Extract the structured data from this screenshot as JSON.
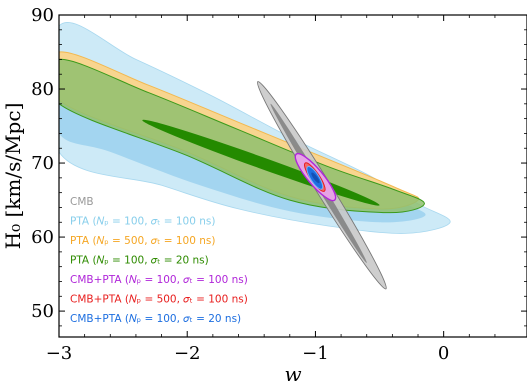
{
  "chart_data": {
    "type": "contour",
    "xlabel": "w",
    "ylabel": "H₀ [km/s/Mpc]",
    "xlim": [
      -3,
      0.65
    ],
    "ylim": [
      46.5,
      90
    ],
    "x_ticks": [
      -3,
      -2,
      -1,
      0
    ],
    "y_ticks": [
      50,
      60,
      70,
      80,
      90
    ],
    "x_tick_labels": [
      "−3",
      "−2",
      "−1",
      "0"
    ],
    "y_tick_labels": [
      "50",
      "60",
      "70",
      "80",
      "90"
    ],
    "legend_position": "lower-left",
    "series": [
      {
        "name": "CMB",
        "color": "#a0a0a0",
        "center": [
          -0.95,
          67.2
        ],
        "ellipses": [
          {
            "level": "outer",
            "points": [
              [
                -1.45,
                81
              ],
              [
                -0.45,
                53
              ]
            ],
            "width": 0.12,
            "fill": "#c9c9c9"
          },
          {
            "level": "inner",
            "points": [
              [
                -1.35,
                78
              ],
              [
                -0.6,
                56.5
              ]
            ],
            "width": 0.05,
            "fill": "#7f7f7f"
          }
        ]
      },
      {
        "name": "PTA (N_p = 100, σ_t = 100 ns)",
        "color": "#87ceeb",
        "region_points_outer": [
          [
            -3,
            88.5
          ],
          [
            -2.4,
            84
          ],
          [
            -1.8,
            79
          ],
          [
            -1.2,
            73.5
          ],
          [
            -0.6,
            68.5
          ],
          [
            -0.2,
            64.5
          ],
          [
            0.05,
            62
          ],
          [
            -0.3,
            60.5
          ],
          [
            -0.9,
            61.5
          ],
          [
            -1.6,
            63.8
          ],
          [
            -2.2,
            67
          ],
          [
            -3,
            71.5
          ]
        ],
        "region_points_inner": [
          [
            -3,
            82
          ],
          [
            -2.3,
            77.5
          ],
          [
            -1.6,
            73
          ],
          [
            -0.9,
            68.5
          ],
          [
            -0.3,
            64.5
          ],
          [
            -0.15,
            62.8
          ],
          [
            -0.5,
            62
          ],
          [
            -1.2,
            63.5
          ],
          [
            -1.9,
            67
          ],
          [
            -2.6,
            71.5
          ],
          [
            -3,
            74
          ]
        ]
      },
      {
        "name": "PTA (N_p = 500, σ_t = 100 ns)",
        "color": "#f5a623",
        "region_points_outer": [
          [
            -3,
            85
          ],
          [
            -2.3,
            80.5
          ],
          [
            -1.6,
            75.5
          ],
          [
            -0.9,
            70.5
          ],
          [
            -0.35,
            66.5
          ],
          [
            -0.2,
            65
          ],
          [
            -0.5,
            63.8
          ],
          [
            -1.2,
            65.5
          ],
          [
            -2,
            71.5
          ],
          [
            -3,
            78.5
          ]
        ],
        "region_points_inner": [
          [
            -3,
            83
          ],
          [
            -2.3,
            78.5
          ],
          [
            -1.6,
            74
          ],
          [
            -0.9,
            69.5
          ],
          [
            -0.35,
            65.8
          ],
          [
            -0.5,
            64.6
          ],
          [
            -1.2,
            66.5
          ],
          [
            -2,
            72.5
          ],
          [
            -3,
            79.5
          ]
        ]
      },
      {
        "name": "PTA (N_p = 100, σ_t = 20 ns)",
        "color": "#2e8b00",
        "region_points_outer": [
          [
            -3,
            84
          ],
          [
            -2.3,
            79.5
          ],
          [
            -1.6,
            74.5
          ],
          [
            -0.9,
            69.5
          ],
          [
            -0.4,
            66.5
          ],
          [
            -0.15,
            64.5
          ],
          [
            -0.45,
            63.3
          ],
          [
            -1.2,
            65
          ],
          [
            -2,
            71
          ],
          [
            -3,
            78
          ]
        ],
        "inner_ellipse": {
          "points": [
            [
              -2.35,
              75.8
            ],
            [
              -0.5,
              64.3
            ]
          ],
          "width": 2.2
        }
      },
      {
        "name": "CMB+PTA (N_p = 100, σ_t = 100 ns)",
        "color": "#cc33cc",
        "ellipse": {
          "points": [
            [
              -1.15,
              71.2
            ],
            [
              -0.85,
              65
            ]
          ],
          "width": 0.12
        }
      },
      {
        "name": "CMB+PTA (N_p = 500, σ_t = 100 ns)",
        "color": "#ee2222",
        "ellipse": {
          "points": [
            [
              -1.08,
              70
            ],
            [
              -0.93,
              66.2
            ]
          ],
          "width": 0.07
        }
      },
      {
        "name": "CMB+PTA (N_p = 100, σ_t = 20 ns)",
        "color": "#1e6fe0",
        "ellipse": {
          "points": [
            [
              -1.06,
              69.5
            ],
            [
              -0.95,
              66.5
            ]
          ],
          "width": 0.065
        }
      }
    ],
    "legend": [
      {
        "label": "CMB",
        "color": "#999999"
      },
      {
        "label": "PTA (𝑁ₚ = 100, 𝜎ₜ = 100 ns)",
        "color": "#87ceeb"
      },
      {
        "label": "PTA (𝑁ₚ = 500, 𝜎ₜ = 100 ns)",
        "color": "#f5a623"
      },
      {
        "label": "PTA (𝑁ₚ = 100, 𝜎ₜ = 20 ns)",
        "color": "#2e8b00"
      },
      {
        "label": "CMB+PTA (𝑁ₚ = 100, 𝜎ₜ = 100 ns)",
        "color": "#b026d9"
      },
      {
        "label": "CMB+PTA (𝑁ₚ = 500, 𝜎ₜ = 100 ns)",
        "color": "#e81e1e"
      },
      {
        "label": "CMB+PTA (𝑁ₚ = 100, 𝜎ₜ = 20 ns)",
        "color": "#1e6fe0"
      }
    ]
  }
}
